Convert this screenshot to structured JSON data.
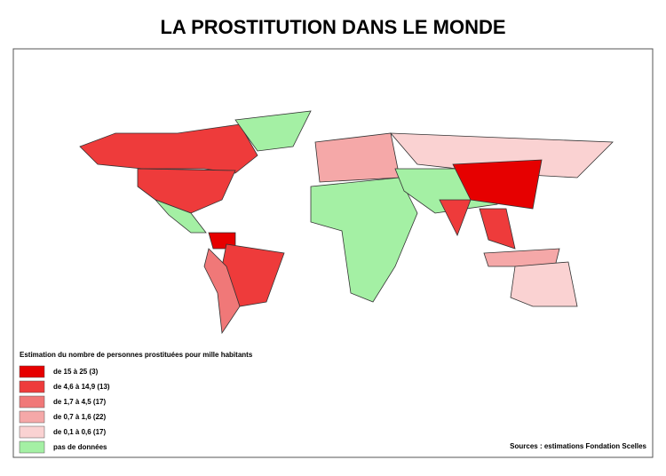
{
  "header": {
    "title": "LA PROSTITUTION DANS LE MONDE"
  },
  "legend": {
    "title": "Estimation du nombre de personnes prostituées pour mille habitants",
    "items": [
      {
        "label": "de 15 à 25 (3)",
        "color": "#e60000"
      },
      {
        "label": "de 4,6 à 14,9 (13)",
        "color": "#ee3b3b"
      },
      {
        "label": "de 1,7 à 4,5 (17)",
        "color": "#f07878"
      },
      {
        "label": "de 0,7 à 1,6 (22)",
        "color": "#f5a8a8"
      },
      {
        "label": "de 0,1 à 0,6 (17)",
        "color": "#fad2d2"
      },
      {
        "label": "pas de données",
        "color": "#a4f0a4"
      }
    ]
  },
  "source": "Sources : estimations Fondation Scelles"
}
